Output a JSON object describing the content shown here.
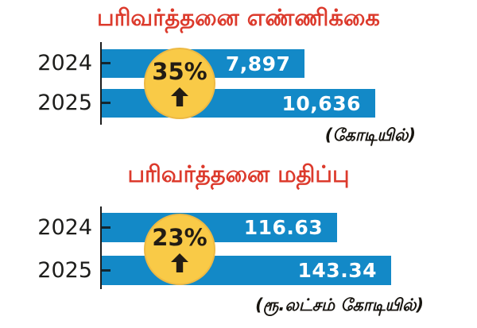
{
  "colors": {
    "title_red": "#dc3a2c",
    "bar": "#1389c7",
    "badge": "#f9ca47",
    "badge_border": "#edb944",
    "badge_text": "#221c14",
    "axis": "#1c1c1c",
    "tick": "#132730",
    "value_text": "#ffffff",
    "label_text": "#1d1d1b",
    "note_text": "#17140f"
  },
  "chart_data": [
    {
      "type": "bar",
      "orientation": "horizontal",
      "title": "பரிவர்த்தனை எண்ணிக்கை",
      "categories": [
        "2024",
        "2025"
      ],
      "values": [
        7897,
        10636
      ],
      "value_labels": [
        "7,897",
        "10,636"
      ],
      "badge": {
        "percent": "35%",
        "direction": "up"
      },
      "unit_note": "(கோடியில்)",
      "xlabel": "",
      "ylabel": "",
      "value_axis_labels_shown": false,
      "grid": false,
      "legend": false,
      "bar_color": "#1389c7"
    },
    {
      "type": "bar",
      "orientation": "horizontal",
      "title": "பரிவர்த்தனை மதிப்பு",
      "categories": [
        "2024",
        "2025"
      ],
      "values": [
        116.63,
        143.34
      ],
      "value_labels": [
        "116.63",
        "143.34"
      ],
      "badge": {
        "percent": "23%",
        "direction": "up"
      },
      "unit_note": "(ரூ.லட்சம் கோடியில்)",
      "xlabel": "",
      "ylabel": "",
      "value_axis_labels_shown": false,
      "grid": false,
      "legend": false,
      "bar_color": "#1389c7"
    }
  ]
}
